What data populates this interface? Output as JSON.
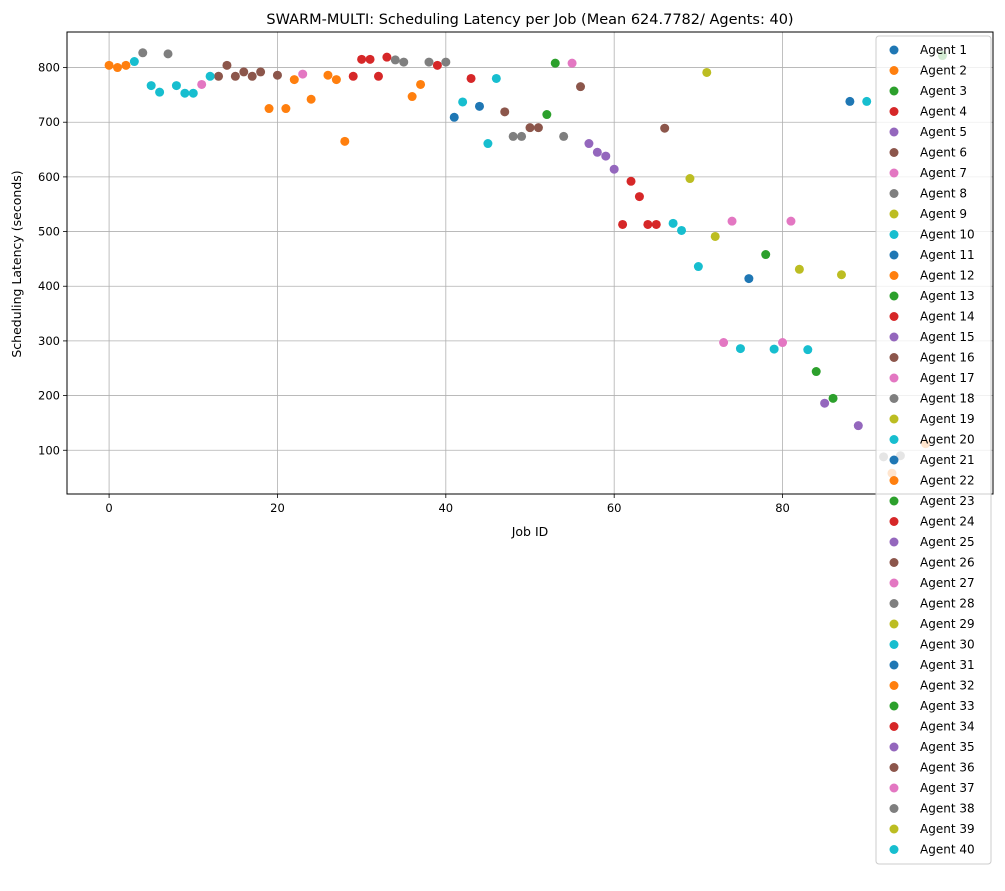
{
  "chart_data": {
    "type": "scatter",
    "title": "SWARM-MULTI: Scheduling Latency per Job (Mean 624.7782/ Agents: 40)",
    "xlabel": "Job ID",
    "ylabel": "Scheduling Latency (seconds)",
    "xlim": [
      -5,
      105
    ],
    "ylim": [
      20,
      865
    ],
    "xticks": [
      0,
      20,
      40,
      60,
      80
    ],
    "yticks": [
      100,
      200,
      300,
      400,
      500,
      600,
      700,
      800
    ],
    "grid": true,
    "legend_position": "right",
    "palette": [
      "#1f77b4",
      "#ff7f0e",
      "#2ca02c",
      "#d62728",
      "#9467bd",
      "#8c564b",
      "#e377c2",
      "#7f7f7f",
      "#bcbd22",
      "#17becf"
    ],
    "series": [
      {
        "name": "Agent 1",
        "points": [
          [
            88,
            738
          ]
        ]
      },
      {
        "name": "Agent 2",
        "points": [
          [
            0,
            804
          ],
          [
            1,
            800
          ],
          [
            2,
            804
          ]
        ]
      },
      {
        "name": "Agent 3",
        "points": [
          [
            53,
            808
          ]
        ]
      },
      {
        "name": "Agent 4",
        "points": [
          [
            29,
            784
          ],
          [
            30,
            815
          ],
          [
            31,
            815
          ],
          [
            32,
            784
          ],
          [
            33,
            819
          ]
        ]
      },
      {
        "name": "Agent 5",
        "points": [
          [
            57,
            661
          ],
          [
            58,
            645
          ]
        ]
      },
      {
        "name": "Agent 6",
        "points": [
          [
            13,
            784
          ],
          [
            14,
            804
          ],
          [
            15,
            784
          ],
          [
            16,
            792
          ],
          [
            17,
            784
          ],
          [
            18,
            792
          ],
          [
            20,
            786
          ]
        ]
      },
      {
        "name": "Agent 7",
        "points": [
          [
            11,
            769
          ],
          [
            23,
            788
          ]
        ]
      },
      {
        "name": "Agent 8",
        "points": [
          [
            4,
            827
          ],
          [
            7,
            825
          ],
          [
            34,
            814
          ],
          [
            35,
            810
          ],
          [
            38,
            810
          ],
          [
            40,
            810
          ]
        ]
      },
      {
        "name": "Agent 9",
        "points": [
          [
            69,
            597
          ],
          [
            71,
            791
          ]
        ]
      },
      {
        "name": "Agent 10",
        "points": [
          [
            3,
            811
          ],
          [
            5,
            767
          ],
          [
            6,
            755
          ],
          [
            8,
            767
          ],
          [
            9,
            753
          ],
          [
            10,
            753
          ],
          [
            12,
            784
          ]
        ]
      },
      {
        "name": "Agent 11",
        "points": [
          [
            41,
            709
          ],
          [
            44,
            729
          ]
        ]
      },
      {
        "name": "Agent 12",
        "points": [
          [
            19,
            725
          ],
          [
            21,
            725
          ],
          [
            22,
            778
          ],
          [
            24,
            742
          ],
          [
            26,
            786
          ],
          [
            27,
            778
          ],
          [
            28,
            665
          ],
          [
            36,
            747
          ],
          [
            37,
            769
          ]
        ]
      },
      {
        "name": "Agent 13",
        "points": [
          [
            52,
            714
          ]
        ]
      },
      {
        "name": "Agent 14",
        "points": [
          [
            39,
            804
          ],
          [
            43,
            780
          ]
        ]
      },
      {
        "name": "Agent 15",
        "points": [
          [
            59,
            638
          ],
          [
            60,
            614
          ]
        ]
      },
      {
        "name": "Agent 16",
        "points": [
          [
            47,
            719
          ],
          [
            50,
            690
          ],
          [
            51,
            690
          ],
          [
            56,
            765
          ]
        ]
      },
      {
        "name": "Agent 17",
        "points": [
          [
            55,
            808
          ]
        ]
      },
      {
        "name": "Agent 18",
        "points": [
          [
            48,
            674
          ],
          [
            49,
            674
          ],
          [
            54,
            674
          ]
        ]
      },
      {
        "name": "Agent 19",
        "points": [
          [
            72,
            491
          ]
        ]
      },
      {
        "name": "Agent 20",
        "points": [
          [
            42,
            737
          ],
          [
            45,
            661
          ],
          [
            46,
            780
          ]
        ]
      },
      {
        "name": "Agent 21",
        "points": [
          [
            76,
            414
          ]
        ]
      },
      {
        "name": "Agent 22",
        "points": [
          [
            93,
            58
          ]
        ]
      },
      {
        "name": "Agent 23",
        "points": [
          [
            78,
            458
          ]
        ]
      },
      {
        "name": "Agent 24",
        "points": [
          [
            61,
            513
          ],
          [
            62,
            592
          ],
          [
            63,
            564
          ],
          [
            64,
            513
          ],
          [
            65,
            513
          ]
        ]
      },
      {
        "name": "Agent 25",
        "points": [
          [
            85,
            186
          ],
          [
            89,
            145
          ]
        ]
      },
      {
        "name": "Agent 26",
        "points": [
          [
            66,
            689
          ]
        ]
      },
      {
        "name": "Agent 27",
        "points": [
          [
            73,
            297
          ],
          [
            74,
            519
          ],
          [
            80,
            297
          ],
          [
            81,
            519
          ]
        ]
      },
      {
        "name": "Agent 28",
        "points": [
          [
            92,
            88
          ],
          [
            94,
            90
          ]
        ]
      },
      {
        "name": "Agent 29",
        "points": [
          [
            82,
            431
          ],
          [
            87,
            421
          ]
        ]
      },
      {
        "name": "Agent 30",
        "points": [
          [
            67,
            515
          ],
          [
            68,
            502
          ],
          [
            70,
            436
          ],
          [
            75,
            286
          ],
          [
            79,
            285
          ],
          [
            83,
            284
          ]
        ]
      },
      {
        "name": "Agent 31",
        "points": []
      },
      {
        "name": "Agent 32",
        "points": [
          [
            97,
            112
          ]
        ]
      },
      {
        "name": "Agent 33",
        "points": [
          [
            84,
            244
          ],
          [
            86,
            195
          ],
          [
            99,
            822
          ]
        ]
      },
      {
        "name": "Agent 34",
        "points": []
      },
      {
        "name": "Agent 35",
        "points": []
      },
      {
        "name": "Agent 36",
        "points": []
      },
      {
        "name": "Agent 37",
        "points": []
      },
      {
        "name": "Agent 38",
        "points": []
      },
      {
        "name": "Agent 39",
        "points": []
      },
      {
        "name": "Agent 40",
        "points": [
          [
            90,
            738
          ]
        ]
      }
    ]
  }
}
